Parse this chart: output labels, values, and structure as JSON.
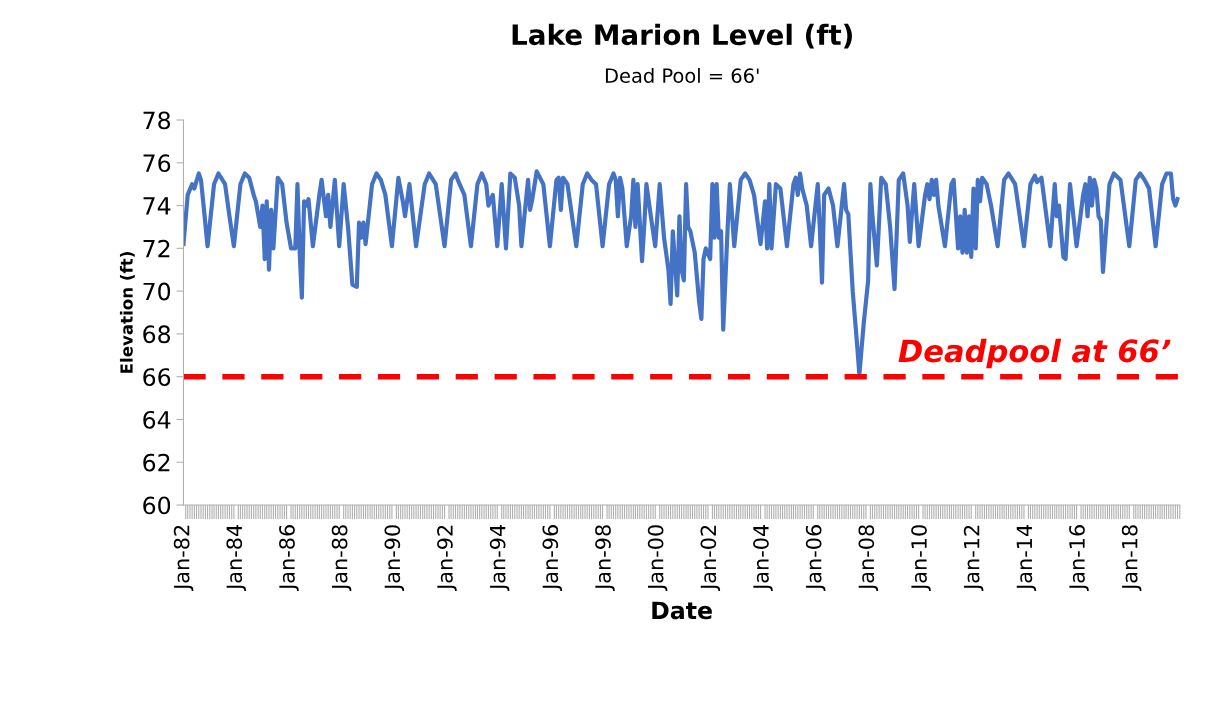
{
  "chart_data": {
    "type": "line",
    "title": "Lake Marion Level (ft)",
    "subtitle": "Dead Pool = 66'",
    "xlabel": "Date",
    "ylabel": "Elevation (ft)",
    "x": [
      "1982-01",
      "1982-03",
      "1982-05",
      "1982-06",
      "1982-08",
      "1982-09",
      "1982-10",
      "1982-12",
      "1983-03",
      "1983-05",
      "1983-08",
      "1983-10",
      "1983-12",
      "1984-03",
      "1984-05",
      "1984-07",
      "1984-09",
      "1984-10",
      "1984-12",
      "1985-01",
      "1985-02",
      "1985-03",
      "1985-04",
      "1985-05",
      "1985-06",
      "1985-08",
      "1985-10",
      "1985-12",
      "1986-02",
      "1986-04",
      "1986-05",
      "1986-06",
      "1986-07",
      "1986-08",
      "1986-09",
      "1986-10",
      "1986-12",
      "1987-03",
      "1987-04",
      "1987-06",
      "1987-07",
      "1987-08",
      "1987-10",
      "1987-12",
      "1988-02",
      "1988-04",
      "1988-06",
      "1988-08",
      "1988-09",
      "1988-10",
      "1988-11",
      "1988-12",
      "1989-03",
      "1989-05",
      "1989-07",
      "1989-09",
      "1989-12",
      "1990-03",
      "1990-05",
      "1990-06",
      "1990-08",
      "1990-11",
      "1991-03",
      "1991-05",
      "1991-08",
      "1991-12",
      "1992-03",
      "1992-05",
      "1992-06",
      "1992-09",
      "1992-12",
      "1993-03",
      "1993-05",
      "1993-07",
      "1993-08",
      "1993-10",
      "1993-12",
      "1994-02",
      "1994-04",
      "1994-06",
      "1994-08",
      "1994-10",
      "1994-11",
      "1995-02",
      "1995-03",
      "1995-04",
      "1995-06",
      "1995-09",
      "1995-12",
      "1996-03",
      "1996-04",
      "1996-05",
      "1996-06",
      "1996-08",
      "1996-12",
      "1997-03",
      "1997-05",
      "1997-07",
      "1997-09",
      "1997-12",
      "1998-03",
      "1998-05",
      "1998-06",
      "1998-07",
      "1998-08",
      "1998-09",
      "1998-11",
      "1999-01",
      "1999-02",
      "1999-03",
      "1999-04",
      "1999-06",
      "1999-07",
      "1999-08",
      "1999-10",
      "1999-12",
      "2000-02",
      "2000-04",
      "2000-06",
      "2000-07",
      "2000-08",
      "2000-10",
      "2000-11",
      "2000-12",
      "2001-01",
      "2001-02",
      "2001-03",
      "2001-04",
      "2001-06",
      "2001-08",
      "2001-09",
      "2001-10",
      "2001-11",
      "2002-01",
      "2002-02",
      "2002-03",
      "2002-04",
      "2002-05",
      "2002-06",
      "2002-07",
      "2002-09",
      "2002-10",
      "2002-12",
      "2003-03",
      "2003-05",
      "2003-07",
      "2003-09",
      "2003-12",
      "2004-02",
      "2004-03",
      "2004-04",
      "2004-05",
      "2004-07",
      "2004-09",
      "2004-12",
      "2005-03",
      "2005-04",
      "2005-05",
      "2005-06",
      "2005-07",
      "2005-09",
      "2005-11",
      "2006-02",
      "2006-03",
      "2006-04",
      "2006-05",
      "2006-07",
      "2006-09",
      "2006-11",
      "2007-02",
      "2007-03",
      "2007-04",
      "2007-06",
      "2007-08",
      "2007-09",
      "2007-11",
      "2008-01",
      "2008-02",
      "2008-03",
      "2008-05",
      "2008-07",
      "2008-09",
      "2008-11",
      "2009-01",
      "2009-03",
      "2009-05",
      "2009-07",
      "2009-08",
      "2009-10",
      "2009-12",
      "2010-03",
      "2010-04",
      "2010-05",
      "2010-06",
      "2010-07",
      "2010-08",
      "2010-09",
      "2010-12",
      "2011-03",
      "2011-04",
      "2011-06",
      "2011-07",
      "2011-08",
      "2011-09",
      "2011-10",
      "2011-11",
      "2011-12",
      "2012-01",
      "2012-02",
      "2012-03",
      "2012-04",
      "2012-05",
      "2012-07",
      "2012-09",
      "2012-12",
      "2013-03",
      "2013-05",
      "2013-08",
      "2013-12",
      "2014-03",
      "2014-05",
      "2014-06",
      "2014-08",
      "2014-12",
      "2015-02",
      "2015-03",
      "2015-04",
      "2015-06",
      "2015-07",
      "2015-09",
      "2015-12",
      "2016-03",
      "2016-04",
      "2016-05",
      "2016-06",
      "2016-07",
      "2016-08",
      "2016-09",
      "2016-10",
      "2016-11",
      "2016-12",
      "2017-03",
      "2017-05",
      "2017-08",
      "2017-12",
      "2018-03",
      "2018-05",
      "2018-07",
      "2018-09",
      "2018-12",
      "2019-03",
      "2019-05",
      "2019-07",
      "2019-08",
      "2019-09",
      "2019-10"
    ],
    "series": [
      {
        "color": "#4472c4",
        "values": [
          72.2,
          74.5,
          75.0,
          74.8,
          75.5,
          75.2,
          74.2,
          72.1,
          75.0,
          75.5,
          75.0,
          73.5,
          72.1,
          75.0,
          75.5,
          75.3,
          74.5,
          74.2,
          73.0,
          74.0,
          71.5,
          74.2,
          71.0,
          73.8,
          72.0,
          75.3,
          75.0,
          73.2,
          72.0,
          72.0,
          75.0,
          71.8,
          69.7,
          74.2,
          74.0,
          74.3,
          72.1,
          74.5,
          75.2,
          73.5,
          74.5,
          73.0,
          75.2,
          72.1,
          75.0,
          73.0,
          70.3,
          70.2,
          73.2,
          72.5,
          73.2,
          72.2,
          75.0,
          75.5,
          75.2,
          74.5,
          72.1,
          75.3,
          74.2,
          73.5,
          75.0,
          72.1,
          75.0,
          75.5,
          75.0,
          72.1,
          75.2,
          75.5,
          75.2,
          74.5,
          72.1,
          75.0,
          75.5,
          75.0,
          74.0,
          74.5,
          72.1,
          75.0,
          72.0,
          75.5,
          75.3,
          74.0,
          72.1,
          75.2,
          73.8,
          74.3,
          75.6,
          75.0,
          72.1,
          75.2,
          75.3,
          73.8,
          75.3,
          75.0,
          72.1,
          75.0,
          75.5,
          75.2,
          75.0,
          72.1,
          75.0,
          75.5,
          75.2,
          73.5,
          75.3,
          74.8,
          72.1,
          73.5,
          75.2,
          73.0,
          75.0,
          71.4,
          73.0,
          75.0,
          73.5,
          72.1,
          75.0,
          72.5,
          71.0,
          69.4,
          72.8,
          69.8,
          73.5,
          71.0,
          70.5,
          75.0,
          73.0,
          72.8,
          71.8,
          69.5,
          68.7,
          71.5,
          72.0,
          71.5,
          75.0,
          72.5,
          75.0,
          72.5,
          72.8,
          68.2,
          73.0,
          75.0,
          72.1,
          75.2,
          75.5,
          75.2,
          74.5,
          72.2,
          74.2,
          72.0,
          75.0,
          72.0,
          75.0,
          74.8,
          72.1,
          75.0,
          75.3,
          74.5,
          75.5,
          74.8,
          74.0,
          72.1,
          75.0,
          73.0,
          70.4,
          74.5,
          74.8,
          74.0,
          72.1,
          75.0,
          73.8,
          73.6,
          70.0,
          67.5,
          66.1,
          68.5,
          70.5,
          75.0,
          73.5,
          71.2,
          75.3,
          75.0,
          73.0,
          70.1,
          75.2,
          75.5,
          74.0,
          72.3,
          75.0,
          72.1,
          74.5,
          75.0,
          74.3,
          75.2,
          74.5,
          75.2,
          74.0,
          72.1,
          75.0,
          75.2,
          72.0,
          73.5,
          71.8,
          73.8,
          71.8,
          73.5,
          71.6,
          74.8,
          72.0,
          75.2,
          74.2,
          75.3,
          75.0,
          74.0,
          72.1,
          75.2,
          75.5,
          75.0,
          72.1,
          75.0,
          75.4,
          75.1,
          75.3,
          72.1,
          75.0,
          73.5,
          74.0,
          71.6,
          71.5,
          75.0,
          72.1,
          74.5,
          75.0,
          73.5,
          75.3,
          74.0,
          75.2,
          74.8,
          73.5,
          73.3,
          70.9,
          75.0,
          75.5,
          75.2,
          72.1,
          75.2,
          75.5,
          75.2,
          74.8,
          72.1,
          75.0,
          75.5,
          75.5,
          74.3,
          74.0,
          74.3
        ]
      }
    ],
    "xlim": [
      "1982-01",
      "2019-11"
    ],
    "xticks": [
      {
        "value": "1982-01",
        "label": "Jan-82"
      },
      {
        "value": "1984-01",
        "label": "Jan-84"
      },
      {
        "value": "1986-01",
        "label": "Jan-86"
      },
      {
        "value": "1988-01",
        "label": "Jan-88"
      },
      {
        "value": "1990-01",
        "label": "Jan-90"
      },
      {
        "value": "1992-01",
        "label": "Jan-92"
      },
      {
        "value": "1994-01",
        "label": "Jan-94"
      },
      {
        "value": "1996-01",
        "label": "Jan-96"
      },
      {
        "value": "1998-01",
        "label": "Jan-98"
      },
      {
        "value": "2000-01",
        "label": "Jan-00"
      },
      {
        "value": "2002-01",
        "label": "Jan-02"
      },
      {
        "value": "2004-01",
        "label": "Jan-04"
      },
      {
        "value": "2006-01",
        "label": "Jan-06"
      },
      {
        "value": "2008-01",
        "label": "Jan-08"
      },
      {
        "value": "2010-01",
        "label": "Jan-10"
      },
      {
        "value": "2012-01",
        "label": "Jan-12"
      },
      {
        "value": "2014-01",
        "label": "Jan-14"
      },
      {
        "value": "2016-01",
        "label": "Jan-16"
      },
      {
        "value": "2018-01",
        "label": "Jan-18"
      }
    ],
    "ylim": [
      60,
      78
    ],
    "yticks": [
      60,
      62,
      64,
      66,
      68,
      70,
      72,
      74,
      76,
      78
    ],
    "ref_lines": [
      {
        "axis": "y",
        "value": 66,
        "label": "Deadpool at 66’",
        "color": "#ff0000",
        "line_style": "dashed"
      }
    ],
    "grid": false,
    "legend": false,
    "marker": "none",
    "line_style": "solid"
  }
}
